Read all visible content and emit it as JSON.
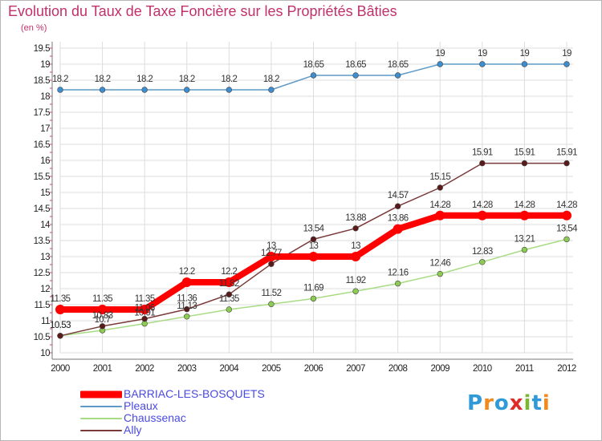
{
  "title": "Evolution du Taux de Taxe Foncière sur les Propriétés Bâties",
  "unit_label": "(en %)",
  "logo": {
    "letters": [
      "P",
      "r",
      "o",
      "x",
      "i",
      "t",
      "i"
    ],
    "colors": [
      "#2f9ad6",
      "#f08a1c",
      "#2f9ad6",
      "#e02a2a",
      "#7ab830",
      "#2f9ad6",
      "#f08a1c"
    ]
  },
  "chart_data": {
    "type": "line",
    "x": [
      "2000",
      "2001",
      "2002",
      "2003",
      "2004",
      "2005",
      "2006",
      "2007",
      "2008",
      "2009",
      "2010",
      "2011",
      "2012"
    ],
    "y_ticks": [
      "10",
      "10.5",
      "11",
      "11.5",
      "12",
      "12.5",
      "13",
      "13.5",
      "14",
      "14.5",
      "15",
      "15.5",
      "16",
      "16.5",
      "17",
      "17.5",
      "18",
      "18.5",
      "19",
      "19.5"
    ],
    "ylim": [
      10,
      19.5
    ],
    "grid": true,
    "legend_position": "bottom-left",
    "series": [
      {
        "name": "BARRIAC-LES-BOSQUETS",
        "color": "#ff0000",
        "marker_fill": "#ff0000",
        "emphasis": true,
        "values": [
          11.35,
          11.35,
          11.35,
          12.2,
          12.2,
          13,
          13,
          13,
          13.86,
          14.28,
          14.28,
          14.28,
          14.28
        ],
        "labels": [
          "11.35",
          "11.35",
          "11.35",
          "12.2",
          "12.2",
          "13",
          "13",
          "13",
          "13.86",
          "14.28",
          "14.28",
          "14.28",
          "14.28"
        ]
      },
      {
        "name": "Pleaux",
        "color": "#5f9ac6",
        "marker_fill": "#3d8ed0",
        "emphasis": false,
        "values": [
          18.2,
          18.2,
          18.2,
          18.2,
          18.2,
          18.2,
          18.65,
          18.65,
          18.65,
          19,
          19,
          19,
          19
        ],
        "labels": [
          "18.2",
          "18.2",
          "18.2",
          "18.2",
          "18.2",
          "18.2",
          "18.65",
          "18.65",
          "18.65",
          "19",
          "19",
          "19",
          "19"
        ]
      },
      {
        "name": "Chaussenac",
        "color": "#a8dc84",
        "marker_fill": "#8ccc52",
        "emphasis": false,
        "values": [
          10.53,
          10.7,
          10.91,
          11.13,
          11.35,
          11.52,
          11.69,
          11.92,
          12.16,
          12.46,
          12.83,
          13.21,
          13.54
        ],
        "labels": [
          "10.53",
          "10.7",
          "10.91",
          "11.13",
          "11.35",
          "11.52",
          "11.69",
          "11.92",
          "12.16",
          "12.46",
          "12.83",
          "13.21",
          "13.54"
        ]
      },
      {
        "name": "Ally",
        "color": "#7a3a3a",
        "marker_fill": "#5a1a1a",
        "emphasis": false,
        "values": [
          10.53,
          10.83,
          11.06,
          11.36,
          11.82,
          12.77,
          13.54,
          13.88,
          14.57,
          15.15,
          15.91,
          15.91,
          15.91
        ],
        "labels": [
          "10.53",
          "10.83",
          "11.06",
          "11.36",
          "11.82",
          "12.77",
          "13.54",
          "13.88",
          "14.57",
          "15.15",
          "15.91",
          "15.91",
          "15.91"
        ]
      }
    ]
  }
}
